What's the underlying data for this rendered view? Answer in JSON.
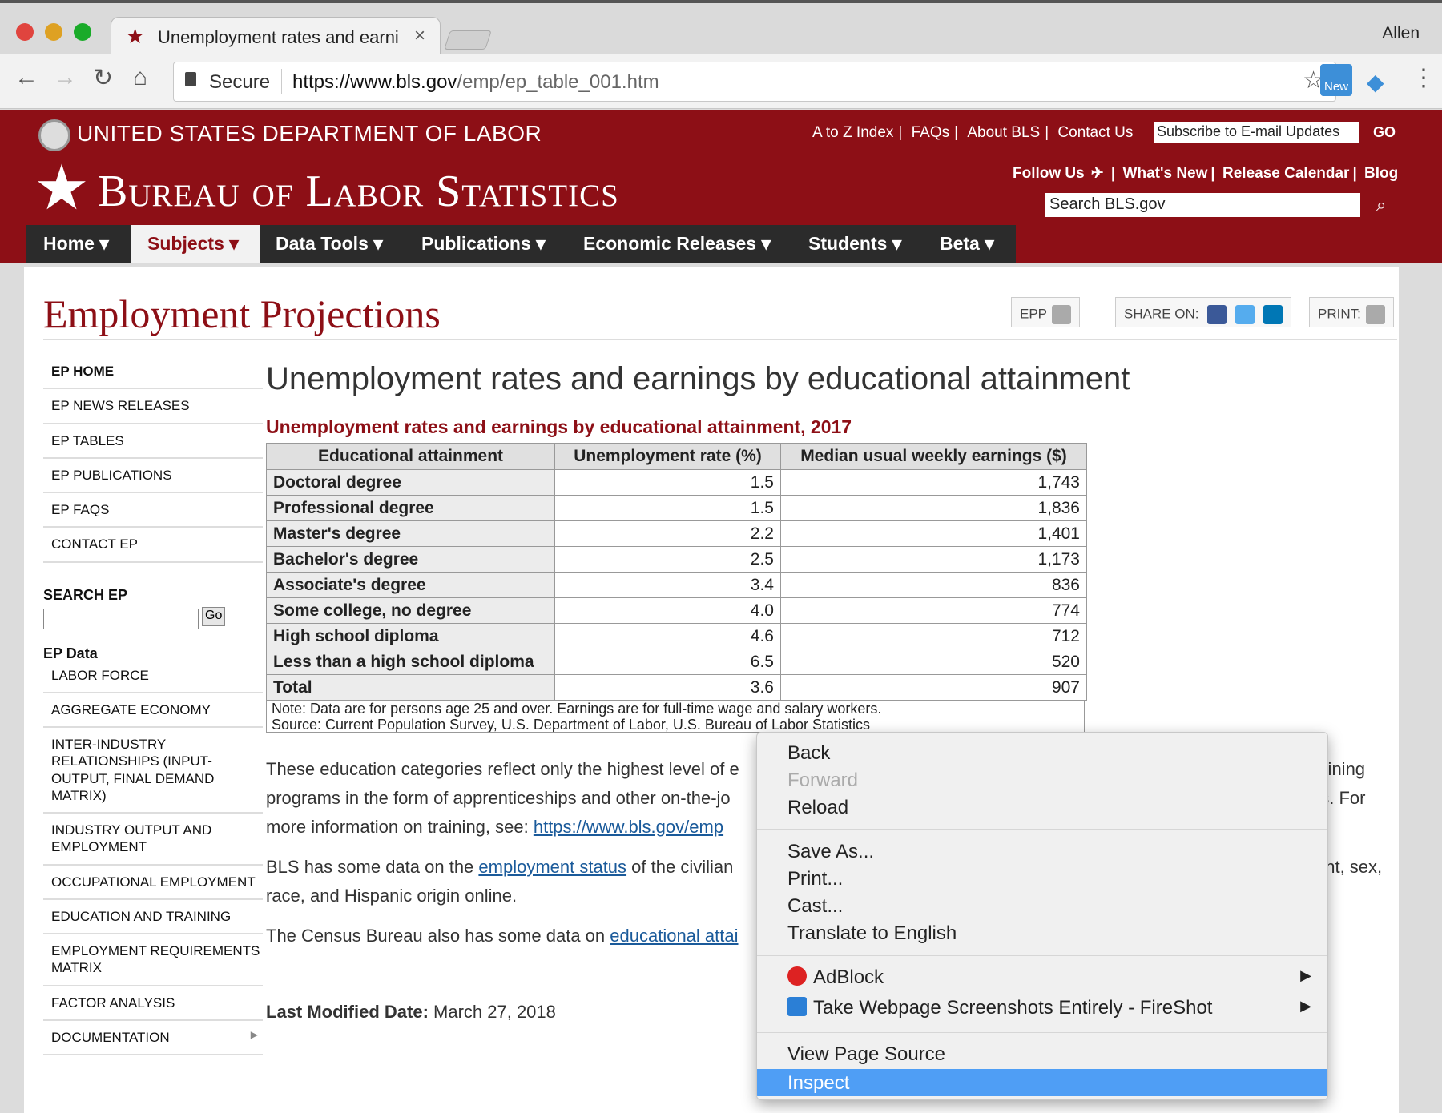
{
  "browser": {
    "tab_title": "Unemployment rates and earni",
    "tab_close": "×",
    "profile": "Allen",
    "secure_label": "Secure",
    "url_host": "https://www.bls.gov",
    "url_path": "/emp/ep_table_001.htm",
    "ext_label": "New"
  },
  "header": {
    "dol": "UNITED STATES DEPARTMENT OF LABOR",
    "bls_title": "Bureau of Labor Statistics",
    "top_links": [
      "A to Z Index",
      "FAQs",
      "About BLS",
      "Contact Us"
    ],
    "subscribe": "Subscribe to E-mail Updates",
    "go": "GO",
    "follow_links": [
      "Follow Us",
      "What's New",
      "Release Calendar",
      "Blog"
    ],
    "search_placeholder": "Search BLS.gov",
    "nav": [
      "Home",
      "Subjects",
      "Data Tools",
      "Publications",
      "Economic Releases",
      "Students",
      "Beta"
    ]
  },
  "page": {
    "title": "Employment Projections",
    "epp": "EPP",
    "share": "SHARE ON:",
    "print": "PRINT:"
  },
  "sidebar": {
    "top_items": [
      "EP HOME",
      "EP NEWS RELEASES",
      "EP TABLES",
      "EP PUBLICATIONS",
      "EP FAQS",
      "CONTACT EP"
    ],
    "search_heading": "SEARCH EP",
    "search_go": "Go",
    "data_heading": "EP Data",
    "data_items": [
      "LABOR FORCE",
      "AGGREGATE ECONOMY",
      "INTER-INDUSTRY RELATIONSHIPS (INPUT-OUTPUT, FINAL DEMAND MATRIX)",
      "INDUSTRY OUTPUT AND EMPLOYMENT",
      "OCCUPATIONAL EMPLOYMENT",
      "EDUCATION AND TRAINING",
      "EMPLOYMENT REQUIREMENTS MATRIX",
      "FACTOR ANALYSIS",
      "DOCUMENTATION"
    ]
  },
  "main": {
    "heading": "Unemployment rates and earnings by educational attainment",
    "caption": "Unemployment rates and earnings by educational attainment, 2017",
    "columns": [
      "Educational attainment",
      "Unemployment rate (%)",
      "Median usual weekly earnings ($)"
    ],
    "rows": [
      [
        "Doctoral degree",
        "1.5",
        "1,743"
      ],
      [
        "Professional degree",
        "1.5",
        "1,836"
      ],
      [
        "Master's degree",
        "2.2",
        "1,401"
      ],
      [
        "Bachelor's degree",
        "2.5",
        "1,173"
      ],
      [
        "Associate's degree",
        "3.4",
        "836"
      ],
      [
        "Some college, no degree",
        "4.0",
        "774"
      ],
      [
        "High school diploma",
        "4.6",
        "712"
      ],
      [
        "Less than a high school diploma",
        "6.5",
        "520"
      ],
      [
        "Total",
        "3.6",
        "907"
      ]
    ],
    "note": "Note: Data are for persons age 25 and over. Earnings are for full-time wage and salary workers.",
    "source": "Source: Current Population Survey, U.S. Department of Labor, U.S. Bureau of Labor Statistics",
    "p1_a": "These education categories reflect only the highest level of e",
    "p1_b": "raining",
    "p1_c": "programs in the form of apprenticeships and other on-the-jo",
    "p1_d": "es. For",
    "p1_e": "more information on training, see: ",
    "p1_link": "https://www.bls.gov/emp",
    "p2_a": "BLS has some data on the ",
    "p2_link": "employment status",
    "p2_b": " of the civilian",
    "p2_c": "ent, sex,",
    "p2_d": "race, and Hispanic origin online.",
    "p3_a": "The Census Bureau also has some data on ",
    "p3_link": "educational attai",
    "modified_label": "Last Modified Date:",
    "modified_value": " March 27, 2018"
  },
  "context_menu": {
    "back": "Back",
    "forward": "Forward",
    "reload": "Reload",
    "save_as": "Save As...",
    "print": "Print...",
    "cast": "Cast...",
    "translate": "Translate to English",
    "adblock": "AdBlock",
    "fireshot": "Take Webpage Screenshots Entirely - FireShot",
    "view_source": "View Page Source",
    "inspect": "Inspect"
  }
}
